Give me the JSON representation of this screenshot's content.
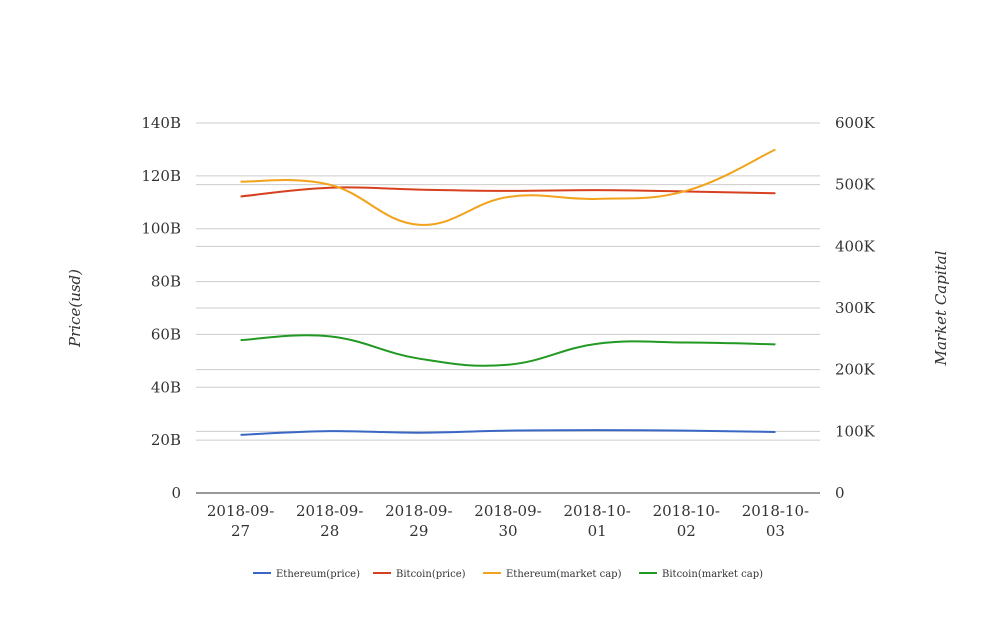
{
  "chart_data": {
    "type": "line",
    "categories": [
      "2018-09-27",
      "2018-09-28",
      "2018-09-29",
      "2018-09-30",
      "2018-10-01",
      "2018-10-02",
      "2018-10-03"
    ],
    "category_labels": [
      [
        "2018-09-",
        "27"
      ],
      [
        "2018-09-",
        "28"
      ],
      [
        "2018-09-",
        "29"
      ],
      [
        "2018-09-",
        "30"
      ],
      [
        "2018-10-",
        "01"
      ],
      [
        "2018-10-",
        "02"
      ],
      [
        "2018-10-",
        "03"
      ]
    ],
    "ylabel": "Price(usd)",
    "y2label": "Market Capital",
    "ylim": [
      0,
      140000000000
    ],
    "y2lim": [
      0,
      600000
    ],
    "y_ticks": [
      {
        "value": 0,
        "label": "0"
      },
      {
        "value": 20000000000,
        "label": "20B"
      },
      {
        "value": 40000000000,
        "label": "40B"
      },
      {
        "value": 60000000000,
        "label": "60B"
      },
      {
        "value": 80000000000,
        "label": "80B"
      },
      {
        "value": 100000000000,
        "label": "100B"
      },
      {
        "value": 120000000000,
        "label": "120B"
      },
      {
        "value": 140000000000,
        "label": "140B"
      }
    ],
    "y2_ticks": [
      {
        "value": 0,
        "label": "0"
      },
      {
        "value": 100000,
        "label": "100K"
      },
      {
        "value": 200000,
        "label": "200K"
      },
      {
        "value": 300000,
        "label": "300K"
      },
      {
        "value": 400000,
        "label": "400K"
      },
      {
        "value": 500000,
        "label": "500K"
      },
      {
        "value": 600000,
        "label": "600K"
      }
    ],
    "grid": true,
    "legend_position": "bottom",
    "series": [
      {
        "name": "Ethereum(price)",
        "axis": "left",
        "color": "#3a67c4",
        "values": [
          22000000000,
          23400000000,
          22800000000,
          23600000000,
          23800000000,
          23600000000,
          23100000000
        ]
      },
      {
        "name": "Bitcoin(price)",
        "axis": "left",
        "color": "#d6401f",
        "values": [
          112200000000,
          115500000000,
          114800000000,
          114300000000,
          114600000000,
          114100000000,
          113400000000
        ]
      },
      {
        "name": "Ethereum(market cap)",
        "axis": "right",
        "color": "#f2a21b",
        "values": [
          505000,
          500000,
          435000,
          480000,
          477000,
          490000,
          557000
        ]
      },
      {
        "name": "Bitcoin(market cap)",
        "axis": "right",
        "color": "#229922",
        "values": [
          248000,
          254000,
          218000,
          208000,
          242000,
          244000,
          241000
        ]
      }
    ]
  }
}
